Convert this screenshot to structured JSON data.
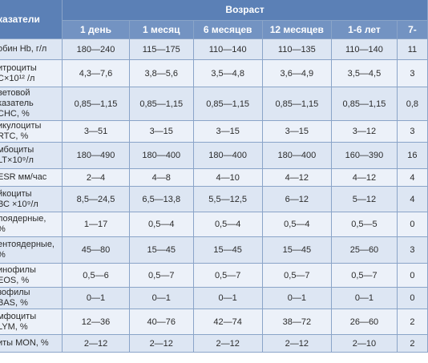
{
  "header": {
    "param": "казатели",
    "age": "Возраст",
    "ages": [
      "1 день",
      "1 месяц",
      "6 месяцев",
      "12 месяцев",
      "1-6 лет",
      "7-"
    ]
  },
  "rows": [
    {
      "p1": "обин Hb, г/л",
      "p2": "",
      "v": [
        "180—240",
        "115—175",
        "110—140",
        "110—135",
        "110—140",
        "11"
      ]
    },
    {
      "p1": "итроциты",
      "p2": "С×10¹² /л",
      "v": [
        "4,3—7,6",
        "3,8—5,6",
        "3,5—4,8",
        "3,6—4,9",
        "3,5—4,5",
        "3"
      ]
    },
    {
      "p1": "ветовой",
      "p2": "казатель\nCHC, %",
      "v": [
        "0,85—1,15",
        "0,85—1,15",
        "0,85—1,15",
        "0,85—1,15",
        "0,85—1,15",
        "0,8"
      ]
    },
    {
      "p1": "икулоциты",
      "p2": "RTC, %",
      "v": [
        "3—51",
        "3—15",
        "3—15",
        "3—15",
        "3—12",
        "3"
      ]
    },
    {
      "p1": "мбоциты",
      "p2": "LT×10⁹/л",
      "v": [
        "180—490",
        "180—400",
        "180—400",
        "180—400",
        "160—390",
        "16"
      ]
    },
    {
      "p1": "ESR мм/час",
      "p2": "",
      "v": [
        "2—4",
        "4—8",
        "4—10",
        "4—12",
        "4—12",
        "4"
      ]
    },
    {
      "p1": "йкоциты",
      "p2": "ВС ×10⁹/л",
      "v": [
        "8,5—24,5",
        "6,5—13,8",
        "5,5—12,5",
        "6—12",
        "5—12",
        "4"
      ]
    },
    {
      "p1": "лоядерные,",
      "p2": "%",
      "v": [
        "1—17",
        "0,5—4",
        "0,5—4",
        "0,5—4",
        "0,5—5",
        "0"
      ]
    },
    {
      "p1": "ентоядерные,",
      "p2": "%",
      "v": [
        "45—80",
        "15—45",
        "15—45",
        "15—45",
        "25—60",
        "3"
      ]
    },
    {
      "p1": "инофилы",
      "p2": "EOS, %",
      "v": [
        "0,5—6",
        "0,5—7",
        "0,5—7",
        "0,5—7",
        "0,5—7",
        "0"
      ]
    },
    {
      "p1": "зофилы",
      "p2": "BAS, %",
      "v": [
        "0—1",
        "0—1",
        "0—1",
        "0—1",
        "0—1",
        "0"
      ]
    },
    {
      "p1": "мфоциты",
      "p2": "LYM, %",
      "v": [
        "12—36",
        "40—76",
        "42—74",
        "38—72",
        "26—60",
        "2"
      ]
    },
    {
      "p1": "иты MON, %",
      "p2": "",
      "v": [
        "2—12",
        "2—12",
        "2—12",
        "2—12",
        "2—10",
        "2"
      ]
    }
  ]
}
